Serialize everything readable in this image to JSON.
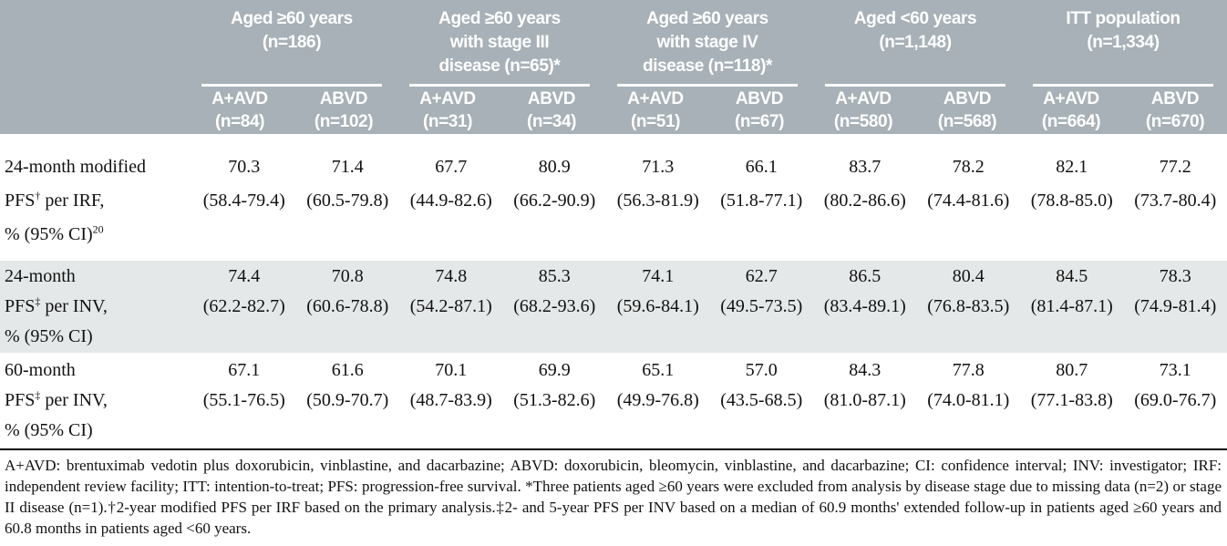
{
  "header": {
    "groups": [
      {
        "title": "Aged ≥60 years\n(n=186)",
        "subs": [
          {
            "arm": "A+AVD",
            "n": "(n=84)"
          },
          {
            "arm": "ABVD",
            "n": "(n=102)"
          }
        ]
      },
      {
        "title": "Aged ≥60 years\nwith stage III\ndisease (n=65)*",
        "subs": [
          {
            "arm": "A+AVD",
            "n": "(n=31)"
          },
          {
            "arm": "ABVD",
            "n": "(n=34)"
          }
        ]
      },
      {
        "title": "Aged ≥60 years\nwith stage IV\ndisease (n=118)*",
        "subs": [
          {
            "arm": "A+AVD",
            "n": "(n=51)"
          },
          {
            "arm": "ABVD",
            "n": "(n=67)"
          }
        ]
      },
      {
        "title": "Aged <60 years\n(n=1,148)",
        "subs": [
          {
            "arm": "A+AVD",
            "n": "(n=580)"
          },
          {
            "arm": "ABVD",
            "n": "(n=568)"
          }
        ]
      },
      {
        "title": "ITT population\n(n=1,334)",
        "subs": [
          {
            "arm": "A+AVD",
            "n": "(n=664)"
          },
          {
            "arm": "ABVD",
            "n": "(n=670)"
          }
        ]
      }
    ]
  },
  "rows": [
    {
      "label": {
        "line1": "24-month modified",
        "line2_pre": "PFS",
        "line2_sup": "†",
        "line2_post": " per IRF,",
        "line3": "% (95% CI)",
        "line3_sup": "20"
      },
      "cells": [
        {
          "v": "70.3",
          "ci": "(58.4-79.4)"
        },
        {
          "v": "71.4",
          "ci": "(60.5-79.8)"
        },
        {
          "v": "67.7",
          "ci": "(44.9-82.6)"
        },
        {
          "v": "80.9",
          "ci": "(66.2-90.9)"
        },
        {
          "v": "71.3",
          "ci": "(56.3-81.9)"
        },
        {
          "v": "66.1",
          "ci": "(51.8-77.1)"
        },
        {
          "v": "83.7",
          "ci": "(80.2-86.6)"
        },
        {
          "v": "78.2",
          "ci": "(74.4-81.6)"
        },
        {
          "v": "82.1",
          "ci": "(78.8-85.0)"
        },
        {
          "v": "77.2",
          "ci": "(73.7-80.4)"
        }
      ]
    },
    {
      "label": {
        "line1": "24-month",
        "line2_pre": "PFS",
        "line2_sup": "‡",
        "line2_post": " per INV,",
        "line3": "% (95% CI)",
        "line3_sup": ""
      },
      "cells": [
        {
          "v": "74.4",
          "ci": "(62.2-82.7)"
        },
        {
          "v": "70.8",
          "ci": "(60.6-78.8)"
        },
        {
          "v": "74.8",
          "ci": "(54.2-87.1)"
        },
        {
          "v": "85.3",
          "ci": "(68.2-93.6)"
        },
        {
          "v": "74.1",
          "ci": "(59.6-84.1)"
        },
        {
          "v": "62.7",
          "ci": "(49.5-73.5)"
        },
        {
          "v": "86.5",
          "ci": "(83.4-89.1)"
        },
        {
          "v": "80.4",
          "ci": "(76.8-83.5)"
        },
        {
          "v": "84.5",
          "ci": "(81.4-87.1)"
        },
        {
          "v": "78.3",
          "ci": "(74.9-81.4)"
        }
      ]
    },
    {
      "label": {
        "line1": "60-month",
        "line2_pre": "PFS",
        "line2_sup": "‡",
        "line2_post": " per INV,",
        "line3": "% (95% CI)",
        "line3_sup": ""
      },
      "cells": [
        {
          "v": "67.1",
          "ci": "(55.1-76.5)"
        },
        {
          "v": "61.6",
          "ci": "(50.9-70.7)"
        },
        {
          "v": "70.1",
          "ci": "(48.7-83.9)"
        },
        {
          "v": "69.9",
          "ci": "(51.3-82.6)"
        },
        {
          "v": "65.1",
          "ci": "(49.9-76.8)"
        },
        {
          "v": "57.0",
          "ci": "(43.5-68.5)"
        },
        {
          "v": "84.3",
          "ci": "(81.0-87.1)"
        },
        {
          "v": "77.8",
          "ci": "(74.0-81.1)"
        },
        {
          "v": "80.7",
          "ci": "(77.1-83.8)"
        },
        {
          "v": "73.1",
          "ci": "(69.0-76.7)"
        }
      ]
    }
  ],
  "footnote": {
    "text": "A+AVD: brentuximab vedotin plus doxorubicin, vinblastine, and dacarbazine; ABVD: doxorubicin, bleomycin, vinblastine, and dacarbazine; CI: confidence interval; INV: investigator; IRF: independent review facility; ITT: intention-to-treat; PFS: progression-free survival. *Three patients aged ≥60 years were excluded from analysis by disease stage due to missing data (n=2) or stage II disease (n=1).†2-year modified PFS per IRF based on the primary analysis.‡2- and 5-year PFS per INV based on a median of 60.9 months' extended follow-up in patients aged ≥60 years and 60.8 months in patients aged <60 years."
  },
  "colors": {
    "header_bg": "#a7b1b7",
    "header_text": "#ffffff",
    "shaded_row_bg": "#e5e8e8",
    "body_text": "#111111",
    "divider": "#000000"
  }
}
